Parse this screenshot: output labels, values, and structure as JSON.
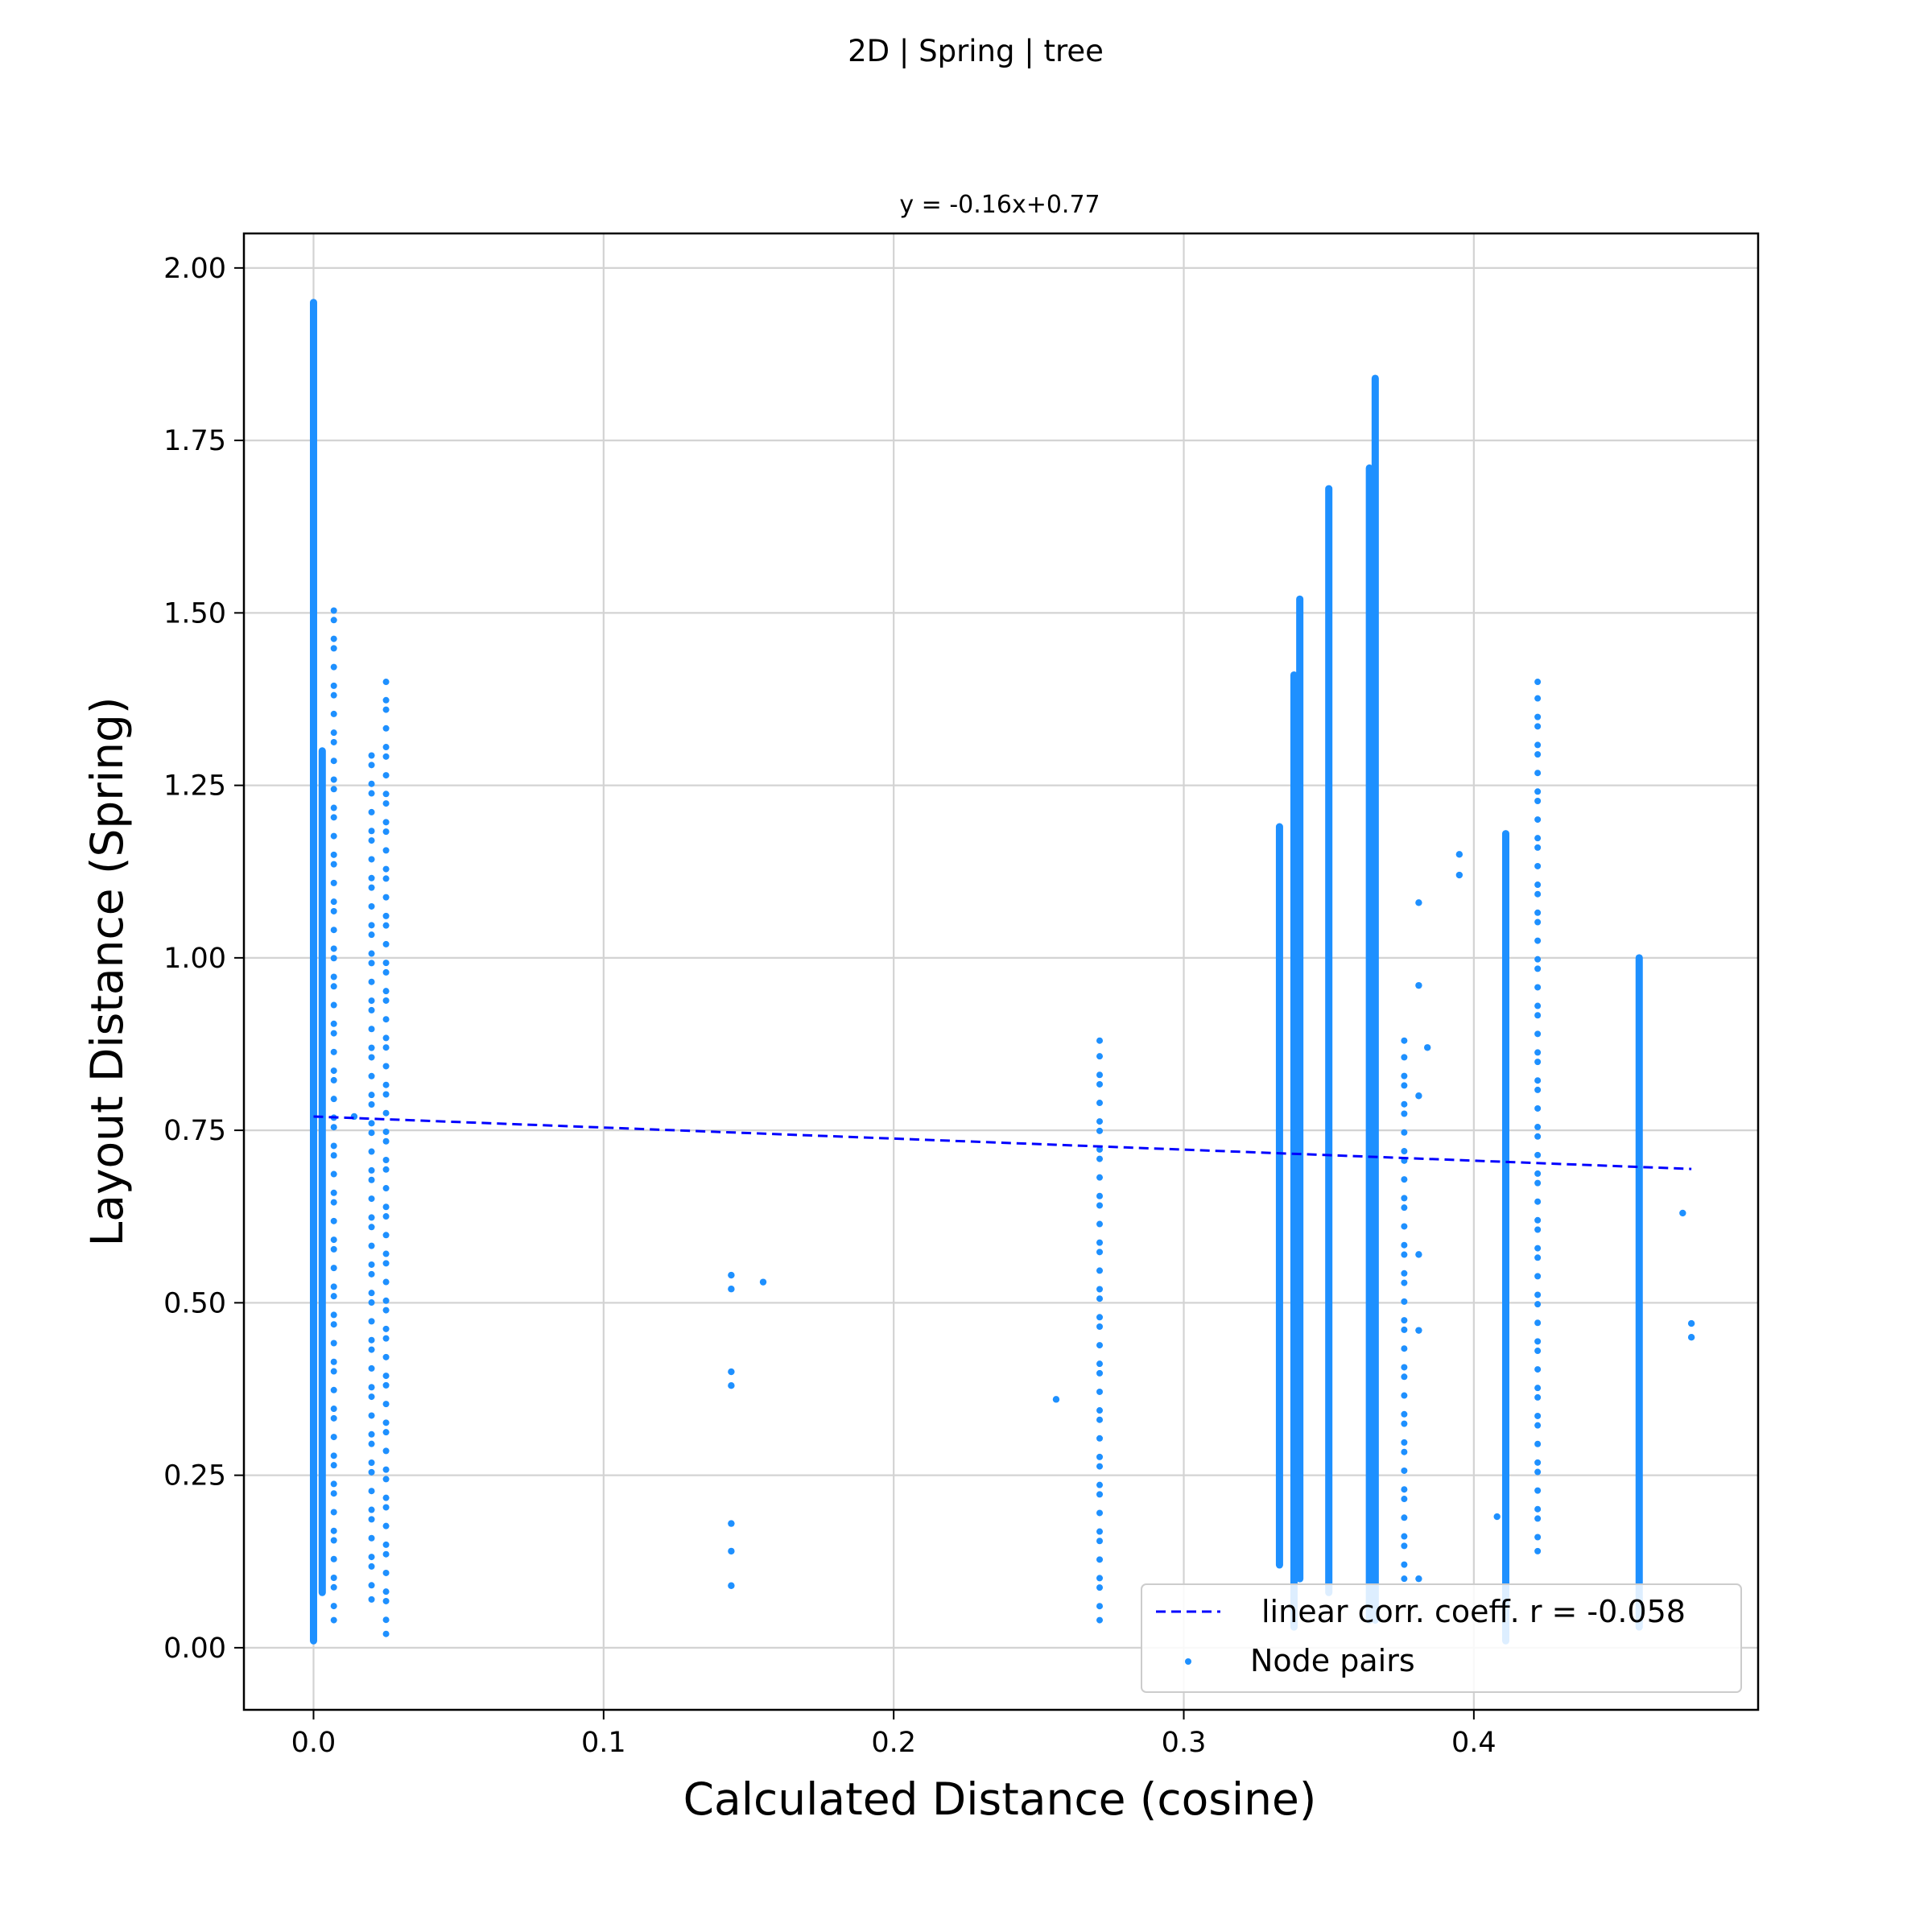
{
  "chart_data": {
    "type": "scatter",
    "title": "2D | Spring | tree",
    "subtitle": "y = -0.16x+0.77",
    "xlabel": "Calculated Distance (cosine)",
    "ylabel": "Layout Distance (Spring)",
    "xlim": [
      -0.024,
      0.498
    ],
    "ylim": [
      -0.09,
      2.05
    ],
    "xticks": [
      "0.0",
      "0.1",
      "0.2",
      "0.3",
      "0.4"
    ],
    "yticks": [
      "0.00",
      "0.25",
      "0.50",
      "0.75",
      "1.00",
      "1.25",
      "1.50",
      "1.75",
      "2.00"
    ],
    "grid": true,
    "legend_position": "lower-right",
    "colors": {
      "scatter": "#1e90ff",
      "fit_line": "#0000ff",
      "grid": "#d3d3d3"
    },
    "fit_line": {
      "name": "linear corr. coeff. r = -0.058",
      "slope": -0.16,
      "intercept": 0.77,
      "x_range": [
        0.0,
        0.475
      ]
    },
    "series": [
      {
        "name": "Node pairs",
        "columns": [
          {
            "x": 0.0,
            "y_min": 0.01,
            "y_max": 1.95,
            "dense": true
          },
          {
            "x": 0.003,
            "y_min": 0.08,
            "y_max": 1.3,
            "dense": true
          },
          {
            "x": 0.007,
            "y_min": 0.04,
            "y_max": 1.51,
            "dense": false
          },
          {
            "x": 0.02,
            "y_min": 0.07,
            "y_max": 1.3,
            "dense": false
          },
          {
            "x": 0.025,
            "y_min": 0.02,
            "y_max": 1.4,
            "dense": false
          },
          {
            "x": 0.271,
            "y_min": 0.04,
            "y_max": 0.88,
            "dense": false
          },
          {
            "x": 0.333,
            "y_min": 0.12,
            "y_max": 1.19,
            "dense": true
          },
          {
            "x": 0.338,
            "y_min": 0.03,
            "y_max": 1.41,
            "dense": true
          },
          {
            "x": 0.34,
            "y_min": 0.1,
            "y_max": 1.52,
            "dense": true
          },
          {
            "x": 0.35,
            "y_min": 0.08,
            "y_max": 1.68,
            "dense": true
          },
          {
            "x": 0.364,
            "y_min": 0.04,
            "y_max": 1.71,
            "dense": true
          },
          {
            "x": 0.366,
            "y_min": 0.04,
            "y_max": 1.84,
            "dense": true
          },
          {
            "x": 0.376,
            "y_min": 0.1,
            "y_max": 0.88,
            "dense": false
          },
          {
            "x": 0.411,
            "y_min": 0.01,
            "y_max": 1.18,
            "dense": true
          },
          {
            "x": 0.422,
            "y_min": 0.14,
            "y_max": 1.4,
            "dense": false
          },
          {
            "x": 0.457,
            "y_min": 0.03,
            "y_max": 1.0,
            "dense": true
          }
        ],
        "points": [
          [
            0.014,
            0.77
          ],
          [
            0.144,
            0.54
          ],
          [
            0.144,
            0.52
          ],
          [
            0.144,
            0.4
          ],
          [
            0.144,
            0.38
          ],
          [
            0.144,
            0.18
          ],
          [
            0.144,
            0.14
          ],
          [
            0.144,
            0.09
          ],
          [
            0.155,
            0.53
          ],
          [
            0.256,
            0.36
          ],
          [
            0.381,
            1.08
          ],
          [
            0.381,
            0.96
          ],
          [
            0.381,
            0.8
          ],
          [
            0.381,
            0.57
          ],
          [
            0.381,
            0.46
          ],
          [
            0.381,
            0.1
          ],
          [
            0.384,
            0.87
          ],
          [
            0.395,
            1.15
          ],
          [
            0.395,
            1.12
          ],
          [
            0.408,
            0.19
          ],
          [
            0.472,
            0.63
          ],
          [
            0.475,
            0.47
          ],
          [
            0.475,
            0.45
          ]
        ]
      }
    ]
  }
}
